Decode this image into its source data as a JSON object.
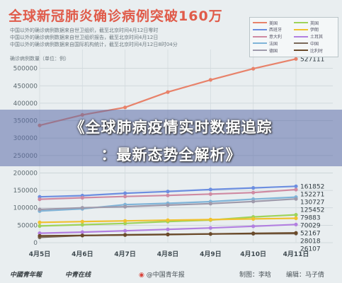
{
  "title": "全球新冠肺炎确诊病例突破160万",
  "subtitle_lines": [
    "中国以外的确诊病例数据来自世卫组织，截至北京时间4月12日零时",
    "中国以外的确诊病例数据来自世卫组织报告，截至北京时间4月12日",
    "中国以外的确诊病例数据来自国际机构统计，截至北京时间4月12日8时04分"
  ],
  "ylabel": "确诊病例数量（单位：例）",
  "banner": {
    "line1": "《全球肺病疫情实时数据追踪",
    "line2": "：最新态势全解析》"
  },
  "footer": {
    "logo1": "中國青年報",
    "logo2": "中青在线",
    "source": "@中国青年报",
    "maker": "制图：李晗",
    "editor": "编辑：马子倩"
  },
  "chart_data": {
    "type": "line",
    "x": [
      "4月5日",
      "4月6日",
      "4月7日",
      "4月8日",
      "4月9日",
      "4月10日",
      "4月11日"
    ],
    "ylim": [
      0,
      550000
    ],
    "yticks": [
      0,
      50000,
      100000,
      150000,
      200000,
      250000,
      300000,
      350000,
      400000,
      450000,
      500000
    ],
    "ytick_labels": [
      "0",
      "50000",
      "100000",
      "150000",
      "200000",
      "250000",
      "300000",
      "350000",
      "400000",
      "450000",
      "500000"
    ],
    "series": [
      {
        "name": "美国",
        "color": "#e8826a",
        "values": [
          336500,
          366500,
          388000,
          432000,
          467000,
          499000,
          527111
        ]
      },
      {
        "name": "英国",
        "color": "#9ed35a",
        "values": [
          47800,
          51600,
          55200,
          60700,
          65000,
          73800,
          79883
        ]
      },
      {
        "name": "西班牙",
        "color": "#6c8ee0",
        "values": [
          131600,
          135000,
          141900,
          146700,
          152400,
          157000,
          161852
        ]
      },
      {
        "name": "伊朗",
        "color": "#f0c12e",
        "values": [
          58200,
          60500,
          62600,
          64600,
          66200,
          68200,
          70029
        ]
      },
      {
        "name": "意大利",
        "color": "#cf8aa2",
        "values": [
          124600,
          128900,
          132500,
          135600,
          139400,
          143600,
          152271
        ]
      },
      {
        "name": "土耳其",
        "color": "#b27fe0",
        "values": [
          27100,
          30200,
          34100,
          38200,
          42300,
          47000,
          52167
        ]
      },
      {
        "name": "法国",
        "color": "#7fb4d8",
        "values": [
          90800,
          97000,
          109100,
          112900,
          117700,
          124900,
          130727
        ]
      },
      {
        "name": "中国",
        "color": "#7a6a5a",
        "values": [
          15500,
          20500,
          22500,
          24000,
          25000,
          25600,
          26107
        ]
      },
      {
        "name": "德国",
        "color": "#9f9aab",
        "values": [
          95300,
          100100,
          103400,
          107700,
          112000,
          118200,
          125452
        ]
      },
      {
        "name": "比利时",
        "color": "#6a4a2a",
        "values": [
          19700,
          20800,
          22100,
          23400,
          24900,
          26700,
          28018
        ]
      }
    ],
    "data_labels": [
      {
        "series": 0,
        "text": "527111"
      },
      {
        "series": 2,
        "text": "161852"
      },
      {
        "series": 4,
        "text": "152271"
      },
      {
        "series": 6,
        "text": "130727"
      },
      {
        "series": 8,
        "text": "125452"
      },
      {
        "series": 1,
        "text": "79883"
      },
      {
        "series": 3,
        "text": "70029"
      },
      {
        "series": 5,
        "text": "52167"
      },
      {
        "series": 9,
        "text": "28018"
      },
      {
        "series": 7,
        "text": "26107"
      }
    ],
    "grid": true,
    "legend": "top-right"
  }
}
